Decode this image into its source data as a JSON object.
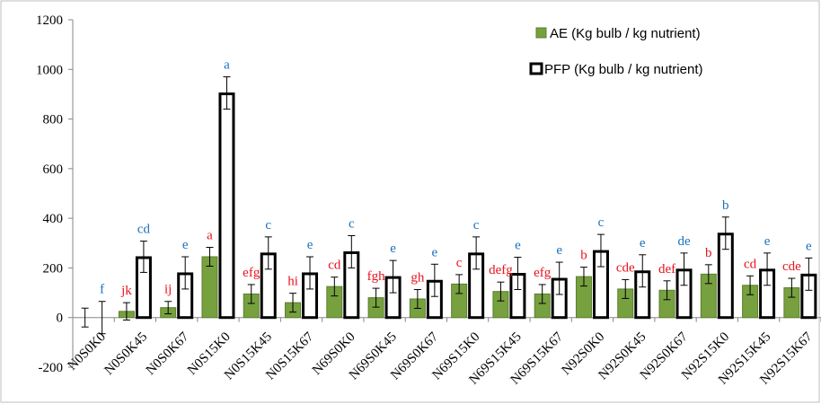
{
  "chart_data": {
    "type": "bar",
    "ylim": [
      -200,
      1200
    ],
    "yticks": [
      -200,
      0,
      200,
      400,
      600,
      800,
      1000,
      1200
    ],
    "categories": [
      "N0S0K0",
      "N0S0K45",
      "N0S0K67",
      "N0S15K0",
      "N0S15K45",
      "N0S15K67",
      "N69S0K0",
      "N69S0K45",
      "N69S0K67",
      "N69S15K0",
      "N69S15K45",
      "N69S15K67",
      "N92S0K0",
      "N92S0K45",
      "N92S0K67",
      "N92S15K0",
      "N92S15K45",
      "N92S15K67"
    ],
    "series": [
      {
        "name": "AE (Kg bulb / kg nutrient)",
        "color": "#77a03f",
        "values": [
          0,
          25,
          40,
          245,
          95,
          60,
          125,
          80,
          75,
          135,
          105,
          95,
          165,
          115,
          110,
          175,
          130,
          120
        ],
        "errors": [
          38,
          35,
          25,
          38,
          38,
          38,
          38,
          38,
          38,
          38,
          38,
          38,
          38,
          38,
          38,
          38,
          38,
          38
        ],
        "letters": [
          "",
          "jk",
          "ij",
          "a",
          "efg",
          "hi",
          "cd",
          "fgh",
          "gh",
          "c",
          "defg",
          "efg",
          "b",
          "cde",
          "def",
          "b",
          "cd",
          "cde"
        ],
        "letter_color": "#e8131b"
      },
      {
        "name": "PFP (Kg bulb / kg nutrient)",
        "color": "#ffffff",
        "values": [
          0,
          245,
          180,
          905,
          260,
          180,
          265,
          165,
          150,
          260,
          178,
          158,
          270,
          188,
          195,
          340,
          195,
          175
        ],
        "errors": [
          65,
          63,
          65,
          65,
          65,
          65,
          65,
          65,
          65,
          65,
          65,
          65,
          65,
          65,
          65,
          65,
          65,
          65
        ],
        "letters": [
          "f",
          "cd",
          "e",
          "a",
          "c",
          "e",
          "c",
          "e",
          "e",
          "c",
          "e",
          "e",
          "c",
          "e",
          "de",
          "b",
          "e",
          "e"
        ],
        "letter_color": "#1b72bd"
      }
    ],
    "legend_position": "top-right",
    "grid": false
  }
}
